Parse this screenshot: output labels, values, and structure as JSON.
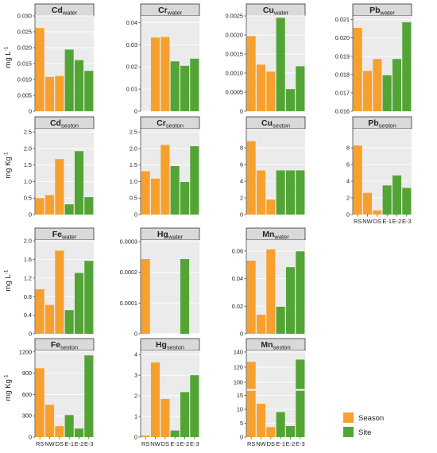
{
  "figure": {
    "ylabels": [
      {
        "main": "mg L",
        "sup": "-1"
      },
      {
        "main": "mg Kg",
        "sup": "-1"
      },
      {
        "main": "mg L",
        "sup": "-1"
      },
      {
        "main": "mg Kg",
        "sup": "-1"
      }
    ],
    "legend": [
      {
        "label": "Season",
        "color": "#F7A02D"
      },
      {
        "label": "Site",
        "color": "#52A535"
      }
    ]
  },
  "chart_data": [
    {
      "type": "bar",
      "title_main": "Cd",
      "title_sub": "water",
      "categories": [
        "RS",
        "NW",
        "DS",
        "E-1",
        "E-2",
        "E-3"
      ],
      "values": [
        0.0262,
        0.0108,
        0.0111,
        0.0194,
        0.0161,
        0.0127
      ],
      "ylim": [
        0,
        0.03
      ],
      "yticks": [
        "0",
        "0.005",
        "0.010",
        "0.015",
        "0.020",
        "0.025",
        "0.030"
      ],
      "ytick_vals": [
        0,
        0.005,
        0.01,
        0.015,
        0.02,
        0.025,
        0.03
      ]
    },
    {
      "type": "bar",
      "title_main": "Cr",
      "title_sub": "water",
      "categories": [
        "RS",
        "NW",
        "DS",
        "E-1",
        "E-2",
        "E-3"
      ],
      "values": [
        0,
        0.0332,
        0.0335,
        0.0225,
        0.0205,
        0.0237
      ],
      "ylim": [
        0,
        0.043
      ],
      "yticks": [
        "0",
        "0.01",
        "0.02",
        "0.03",
        "0.04"
      ],
      "ytick_vals": [
        0,
        0.01,
        0.02,
        0.03,
        0.04
      ]
    },
    {
      "type": "bar",
      "title_main": "Cu",
      "title_sub": "water",
      "categories": [
        "RS",
        "NW",
        "DS",
        "E-1",
        "E-2",
        "E-3"
      ],
      "values": [
        0.00197,
        0.00122,
        0.00104,
        0.00245,
        0.00058,
        0.00118
      ],
      "ylim": [
        0,
        0.0025
      ],
      "yticks": [
        "0",
        "0.0005",
        "0.0010",
        "0.0015",
        "0.0020",
        "0.0025"
      ],
      "ytick_vals": [
        0,
        0.0005,
        0.001,
        0.0015,
        0.002,
        0.0025
      ]
    },
    {
      "type": "bar",
      "title_main": "Pb",
      "title_sub": "water",
      "categories": [
        "RS",
        "NW",
        "DS",
        "E-1",
        "E-2",
        "E-3"
      ],
      "values": [
        0.02055,
        0.0182,
        0.01885,
        0.01797,
        0.01885,
        0.02085
      ],
      "ylim": [
        0.016,
        0.0212
      ],
      "yticks": [
        "0.016",
        "0.017",
        "0.018",
        "0.019",
        "0.020",
        "0.021"
      ],
      "ytick_vals": [
        0.016,
        0.017,
        0.018,
        0.019,
        0.02,
        0.021
      ]
    },
    {
      "type": "bar",
      "title_main": "Cd",
      "title_sub": "seston",
      "categories": [
        "RS",
        "NW",
        "DS",
        "E-1",
        "E-2",
        "E-3"
      ],
      "values": [
        0.5,
        0.59,
        1.68,
        0.31,
        1.92,
        0.53
      ],
      "ylim": [
        0,
        2.6
      ],
      "yticks": [
        "0",
        "0.5",
        "1.0",
        "1.5",
        "2.0",
        "2.5"
      ],
      "ytick_vals": [
        0,
        0.5,
        1.0,
        1.5,
        2.0,
        2.5
      ]
    },
    {
      "type": "bar",
      "title_main": "Cr",
      "title_sub": "seston",
      "categories": [
        "RS",
        "NW",
        "DS",
        "E-1",
        "E-2",
        "E-3"
      ],
      "values": [
        1.31,
        1.09,
        2.11,
        1.47,
        0.99,
        2.07
      ],
      "ylim": [
        0,
        2.6
      ],
      "yticks": [
        "0",
        "0.5",
        "1.0",
        "1.5",
        "2.0",
        "2.5"
      ],
      "ytick_vals": [
        0,
        0.5,
        1.0,
        1.5,
        2.0,
        2.5
      ]
    },
    {
      "type": "bar",
      "title_main": "Cu",
      "title_sub": "seston",
      "categories": [
        "RS",
        "NW",
        "DS",
        "E-1",
        "E-2",
        "E-3"
      ],
      "values": [
        8.8,
        5.3,
        1.8,
        5.3,
        5.3,
        5.3
      ],
      "ylim": [
        0,
        10.3
      ],
      "yticks": [
        "0",
        "2",
        "4",
        "6",
        "8"
      ],
      "ytick_vals": [
        0,
        2,
        4,
        6,
        8
      ]
    },
    {
      "type": "bar",
      "title_main": "Pb",
      "title_sub": "seston",
      "categories": [
        "RS",
        "NW",
        "DS",
        "E-1",
        "E-2",
        "E-3"
      ],
      "values": [
        8.3,
        2.6,
        0.5,
        3.5,
        4.7,
        3.2
      ],
      "ylim": [
        0,
        10.3
      ],
      "yticks": [
        "0",
        "2",
        "4",
        "6",
        "8"
      ],
      "ytick_vals": [
        0,
        2,
        4,
        6,
        8
      ]
    },
    {
      "type": "bar",
      "title_main": "Fe",
      "title_sub": "water",
      "categories": [
        "RS",
        "NW",
        "DS",
        "E-1",
        "E-2",
        "E-3"
      ],
      "values": [
        0.96,
        0.62,
        1.79,
        0.51,
        1.31,
        1.57
      ],
      "ylim": [
        0,
        2.02
      ],
      "yticks": [
        "0",
        "0.4",
        "0.8",
        "1.2",
        "1.6",
        "2.0"
      ],
      "ytick_vals": [
        0,
        0.4,
        0.8,
        1.2,
        1.6,
        2.0
      ]
    },
    {
      "type": "bar",
      "title_main": "Hg",
      "title_sub": "water",
      "categories": [
        "RS",
        "NW",
        "DS",
        "E-1",
        "E-2",
        "E-3"
      ],
      "values": [
        0.000243,
        0,
        0,
        0,
        0.000243,
        0
      ],
      "ylim": [
        0,
        0.000305
      ],
      "yticks": [
        "0",
        "0.0001",
        "0.0002",
        "0.0003"
      ],
      "ytick_vals": [
        0,
        0.0001,
        0.0002,
        0.0003
      ]
    },
    {
      "type": "bar",
      "title_main": "Mn",
      "title_sub": "water",
      "categories": [
        "RS",
        "NW",
        "DS",
        "E-1",
        "E-2",
        "E-3"
      ],
      "values": [
        0.053,
        0.0138,
        0.0612,
        0.0197,
        0.0483,
        0.0598
      ],
      "ylim": [
        0,
        0.068
      ],
      "yticks": [
        "0",
        "0.02",
        "0.04",
        "0.06"
      ],
      "ytick_vals": [
        0,
        0.02,
        0.04,
        0.06
      ]
    },
    {
      "type": "bar",
      "title_main": "Fe",
      "title_sub": "seston",
      "categories": [
        "RS",
        "NW",
        "DS",
        "E-1",
        "E-2",
        "E-3"
      ],
      "values": [
        970,
        455,
        155,
        310,
        120,
        1150
      ],
      "ylim": [
        0,
        1220
      ],
      "yticks": [
        "0",
        "300",
        "600",
        "900",
        "1200"
      ],
      "ytick_vals": [
        0,
        300,
        600,
        900,
        1200
      ]
    },
    {
      "type": "bar",
      "title_main": "Hg",
      "title_sub": "seston",
      "categories": [
        "RS",
        "NW",
        "DS",
        "E-1",
        "E-2",
        "E-3"
      ],
      "values": [
        0.07,
        3.62,
        1.85,
        0.32,
        2.18,
        3.0
      ],
      "ylim": [
        0,
        4.2
      ],
      "yticks": [
        "0",
        "1",
        "2",
        "3",
        "4"
      ],
      "ytick_vals": [
        0,
        1,
        2,
        3,
        4
      ]
    },
    {
      "type": "bar",
      "title_main": "Mn",
      "title_sub": "seston",
      "broken_axis": true,
      "categories": [
        "RS",
        "NW",
        "DS",
        "E-1",
        "E-2",
        "E-3"
      ],
      "values": [
        127,
        12,
        3.6,
        9,
        4,
        130
      ],
      "yticks": [
        "0",
        "5",
        "10",
        "15",
        "100",
        "120",
        "140"
      ],
      "ytick_vals": [
        0,
        5,
        10,
        15,
        100,
        120,
        140
      ]
    }
  ]
}
